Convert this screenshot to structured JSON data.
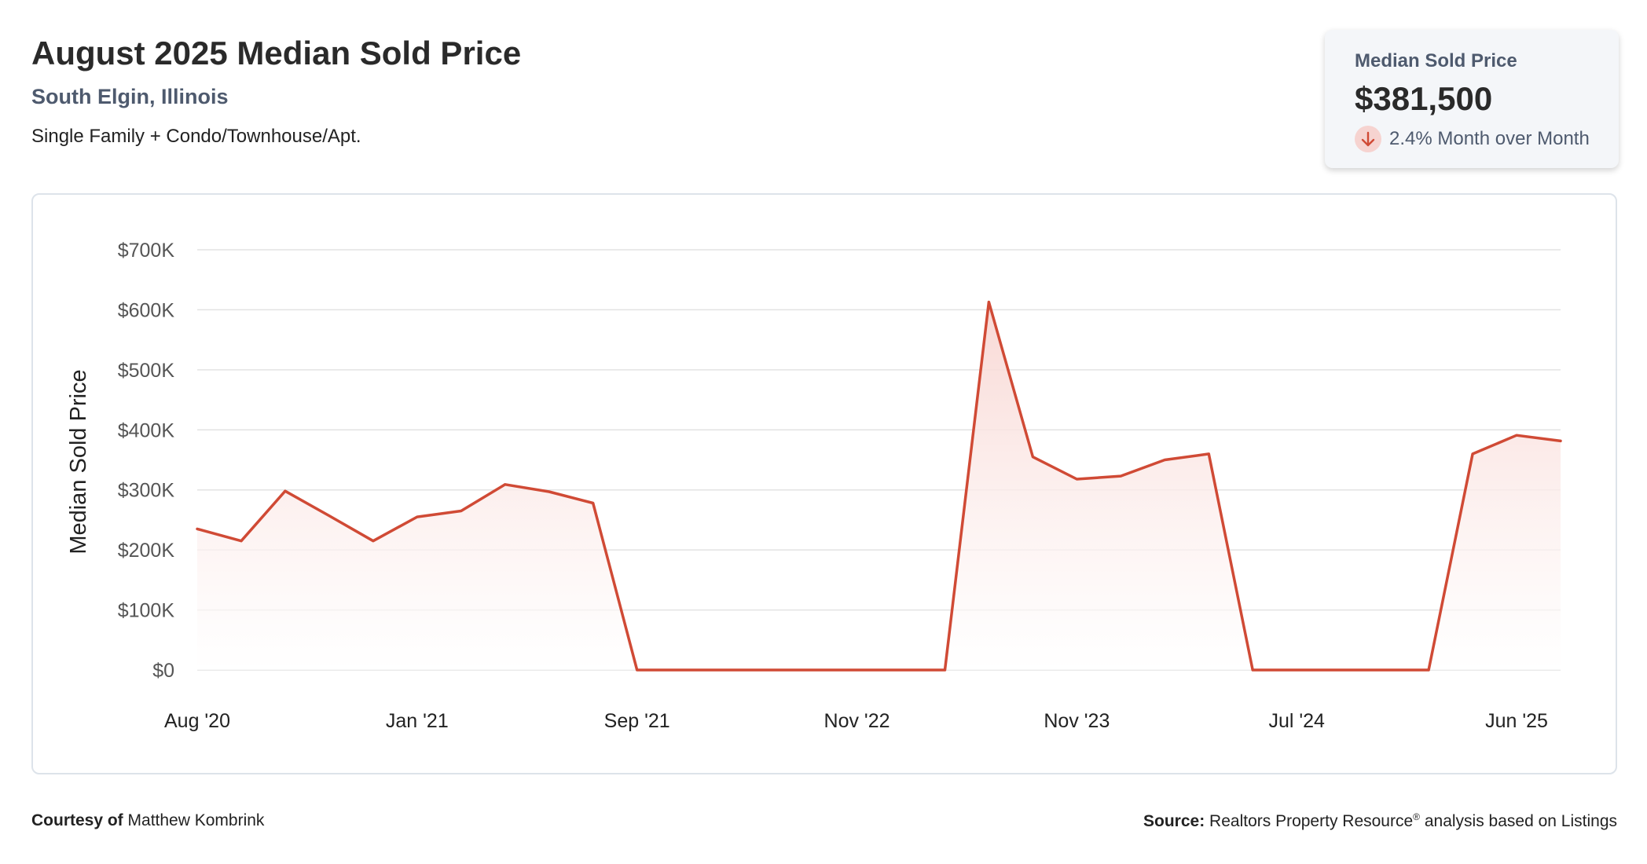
{
  "header": {
    "title": "August 2025 Median Sold Price",
    "location": "South Elgin, Illinois",
    "property_types": "Single Family + Condo/Townhouse/Apt."
  },
  "stat_card": {
    "label": "Median Sold Price",
    "value": "$381,500",
    "change": "2.4% Month over Month",
    "direction_icon": "arrow-down-icon",
    "direction_color": "#d04a35"
  },
  "footer": {
    "courtesy_label": "Courtesy of",
    "courtesy_name": "Matthew Kombrink",
    "source_label": "Source:",
    "source_text_1": "Realtors Property Resource",
    "source_registered": "®",
    "source_text_2": "analysis based on Listings"
  },
  "colors": {
    "line": "#d04a35",
    "fill_top": "#f8d6d2",
    "grid": "#e3e3e3"
  },
  "chart_data": {
    "type": "area",
    "title": "",
    "xlabel": "",
    "ylabel": "Median Sold Price",
    "ylim": [
      0,
      700000
    ],
    "y_ticks": [
      0,
      100000,
      200000,
      300000,
      400000,
      500000,
      600000,
      700000
    ],
    "y_tick_labels": [
      "$0",
      "$100K",
      "$200K",
      "$300K",
      "$400K",
      "$500K",
      "$600K",
      "$700K"
    ],
    "x_tick_labels": [
      "Aug '20",
      "Jan '21",
      "Sep '21",
      "Nov '22",
      "Nov '23",
      "Jul '24",
      "Jun '25"
    ],
    "x_tick_positions": [
      0,
      5,
      10,
      15,
      20,
      25,
      30
    ],
    "grid": true,
    "legend": "none",
    "series": [
      {
        "values": [
          235000,
          215000,
          298000,
          257000,
          215000,
          255000,
          265000,
          309000,
          297000,
          278000,
          0,
          0,
          0,
          0,
          0,
          0,
          0,
          0,
          613000,
          355000,
          318000,
          323000,
          350000,
          360000,
          0,
          0,
          0,
          0,
          0,
          360000,
          391000,
          381500
        ]
      }
    ]
  }
}
